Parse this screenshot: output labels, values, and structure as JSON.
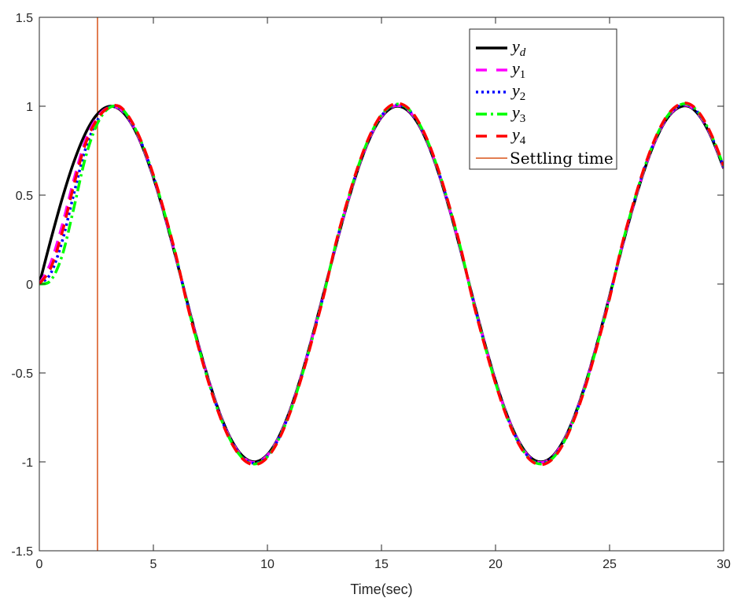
{
  "chart_data": {
    "type": "line",
    "title": "",
    "xlabel": "Time(sec)",
    "ylabel": "",
    "xlim": [
      0,
      30
    ],
    "ylim": [
      -1.5,
      1.5
    ],
    "xticks": [
      0,
      5,
      10,
      15,
      20,
      25,
      30
    ],
    "yticks": [
      -1.5,
      -1,
      -0.5,
      0,
      0.5,
      1,
      1.5
    ],
    "xtick_labels": [
      "0",
      "5",
      "10",
      "15",
      "20",
      "25",
      "30"
    ],
    "ytick_labels": [
      "-1.5",
      "-1",
      "-0.5",
      "0",
      "0.5",
      "1",
      "1.5"
    ],
    "grid": false,
    "legend_position": "top-right",
    "x": [
      0,
      0.5,
      1,
      1.5,
      2,
      2.5,
      3,
      3.5,
      4,
      4.5,
      5,
      5.5,
      6,
      6.5,
      7,
      7.5,
      8,
      8.5,
      9,
      9.5,
      10,
      10.5,
      11,
      11.5,
      12,
      12.5,
      13,
      13.5,
      14,
      14.5,
      15,
      15.5,
      16,
      16.5,
      17,
      17.5,
      18,
      18.5,
      19,
      19.5,
      20,
      20.5,
      21,
      21.5,
      22,
      22.5,
      23,
      23.5,
      24,
      24.5,
      25,
      25.5,
      26,
      26.5,
      27,
      27.5,
      28,
      28.5,
      29,
      29.5,
      30
    ],
    "tail": [
      0.984,
      0.9093,
      0.7781,
      0.5985,
      0.3817,
      0.1411,
      -0.1082,
      -0.3508,
      -0.5716,
      -0.7568,
      -0.895,
      -0.9775,
      -0.9993,
      -0.9589,
      -0.8589,
      -0.7055,
      -0.5082,
      -0.2794,
      -0.0332,
      0.2151,
      0.45,
      0.657,
      0.8231,
      0.938,
      0.9946,
      0.9894,
      0.9228,
      0.7985,
      0.6247,
      0.4121,
      0.1743,
      -0.0752,
      -0.3195,
      -0.544,
      -0.7344,
      -0.8797,
      -0.9712,
      -1.0,
      -0.9683,
      -0.8755,
      -0.7282,
      -0.5366,
      -0.3111,
      -0.0663,
      0.1834,
      0.4202,
      0.6313,
      0.8038,
      0.9268,
      0.9906,
      0.997,
      0.9349,
      0.8142,
      0.6503
    ],
    "series": [
      {
        "name": "y_d",
        "label_base": "y",
        "label_sub": "d",
        "color": "#000000",
        "dash": "solid",
        "head": [
          0,
          0.2474,
          0.4794,
          0.6816,
          0.8415,
          0.949,
          0.9975
        ]
      },
      {
        "name": "y_1",
        "label_base": "y",
        "label_sub": "1",
        "color": "#ff00ff",
        "dash": "dashed",
        "head": [
          0,
          0.12,
          0.33,
          0.58,
          0.8,
          0.93,
          0.99
        ]
      },
      {
        "name": "y_2",
        "label_base": "y",
        "label_sub": "2",
        "color": "#0000ff",
        "dash": "dotted",
        "head": [
          0,
          0.06,
          0.24,
          0.5,
          0.75,
          0.91,
          0.99
        ]
      },
      {
        "name": "y_3",
        "label_base": "y",
        "label_sub": "3",
        "color": "#00ff00",
        "dash": "dashdot",
        "head": [
          0,
          0.02,
          0.16,
          0.42,
          0.7,
          0.89,
          0.985
        ]
      },
      {
        "name": "y_4",
        "label_base": "y",
        "label_sub": "4",
        "color": "#ff0000",
        "dash": "dashed",
        "head": [
          0,
          0.09,
          0.29,
          0.55,
          0.78,
          0.92,
          0.99
        ]
      }
    ],
    "settling_time": {
      "label": "Settling time",
      "x": 2.55,
      "color": "#d95319"
    }
  }
}
